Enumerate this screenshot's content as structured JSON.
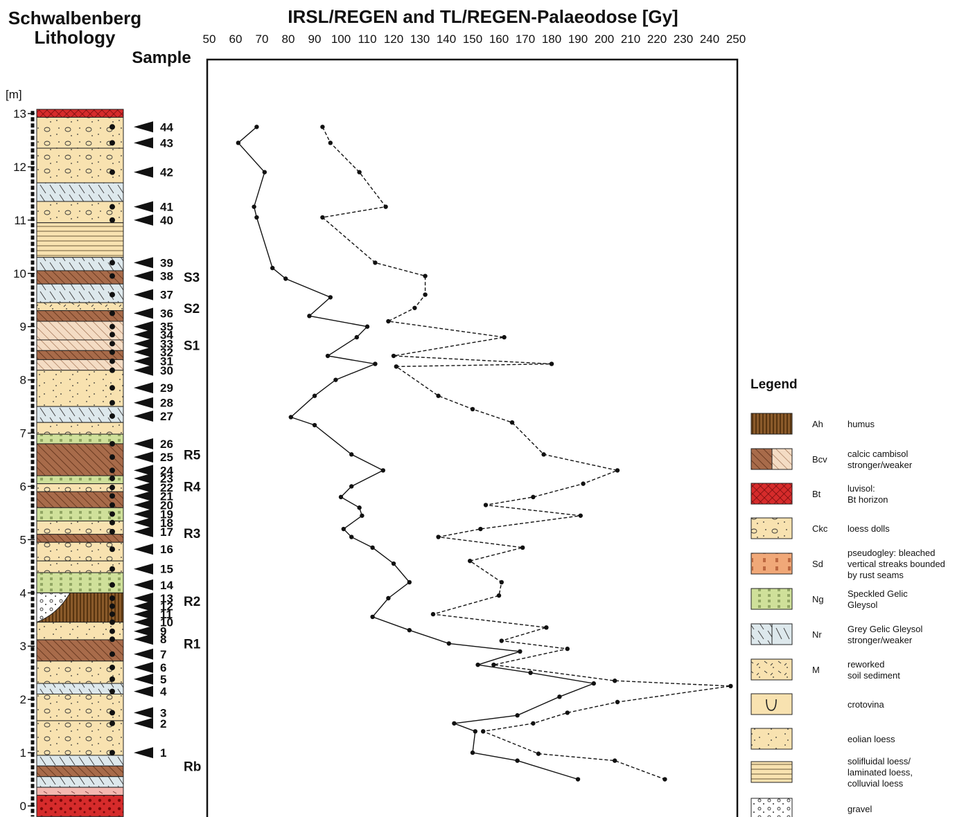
{
  "chart_data": {
    "type": "line",
    "title": "IRSL/REGEN and TL/REGEN-Palaeodose [Gy]",
    "left_title_line1": "Schwalbenberg",
    "left_title_line2": "Lithology",
    "sample_label": "Sample",
    "ylabel": "[m]",
    "x_axis_position": "top",
    "xlim": [
      50,
      250
    ],
    "x_ticks": [
      "50",
      "60",
      "70",
      "80",
      "90",
      "100",
      "110",
      "120",
      "130",
      "140",
      "150",
      "160",
      "170",
      "180",
      "190",
      "200",
      "210",
      "220",
      "230",
      "240",
      "250"
    ],
    "ylim": [
      0,
      13
    ],
    "y_ticks": [
      "0",
      "1",
      "2",
      "3",
      "4",
      "5",
      "6",
      "7",
      "8",
      "9",
      "10",
      "11",
      "12",
      "13"
    ],
    "series": [
      {
        "style": "solid",
        "points": [
          [
            68,
            12.75
          ],
          [
            61,
            12.45
          ],
          [
            71,
            11.9
          ],
          [
            67,
            11.25
          ],
          [
            68,
            11.05
          ],
          [
            74,
            10.1
          ],
          [
            79,
            9.9
          ],
          [
            96,
            9.55
          ],
          [
            88,
            9.2
          ],
          [
            110,
            9.0
          ],
          [
            106,
            8.8
          ],
          [
            95,
            8.45
          ],
          [
            113,
            8.3
          ],
          [
            98,
            8.0
          ],
          [
            90,
            7.7
          ],
          [
            81,
            7.3
          ],
          [
            90,
            7.15
          ],
          [
            104,
            6.6
          ],
          [
            116,
            6.3
          ],
          [
            104,
            6.0
          ],
          [
            100,
            5.8
          ],
          [
            107,
            5.6
          ],
          [
            108,
            5.45
          ],
          [
            101,
            5.2
          ],
          [
            104,
            5.05
          ],
          [
            112,
            4.85
          ],
          [
            120,
            4.55
          ],
          [
            126,
            4.2
          ],
          [
            118,
            3.9
          ],
          [
            112,
            3.55
          ],
          [
            126,
            3.3
          ],
          [
            141,
            3.05
          ],
          [
            168,
            2.9
          ],
          [
            152,
            2.65
          ],
          [
            172,
            2.5
          ],
          [
            196,
            2.3
          ],
          [
            183,
            2.05
          ],
          [
            167,
            1.7
          ],
          [
            143,
            1.55
          ],
          [
            151,
            1.4
          ],
          [
            150,
            1.0
          ],
          [
            167,
            0.85
          ],
          [
            190,
            0.5
          ]
        ]
      },
      {
        "style": "dashed",
        "points": [
          [
            93,
            12.75
          ],
          [
            96,
            12.45
          ],
          [
            107,
            11.9
          ],
          [
            117,
            11.25
          ],
          [
            93,
            11.05
          ],
          [
            113,
            10.2
          ],
          [
            132,
            9.95
          ],
          [
            132,
            9.6
          ],
          [
            128,
            9.35
          ],
          [
            118,
            9.1
          ],
          [
            162,
            8.8
          ],
          [
            120,
            8.45
          ],
          [
            180,
            8.3
          ],
          [
            121,
            8.25
          ],
          [
            137,
            7.7
          ],
          [
            150,
            7.45
          ],
          [
            165,
            7.2
          ],
          [
            177,
            6.6
          ],
          [
            205,
            6.3
          ],
          [
            192,
            6.05
          ],
          [
            173,
            5.8
          ],
          [
            155,
            5.65
          ],
          [
            191,
            5.45
          ],
          [
            153,
            5.2
          ],
          [
            137,
            5.05
          ],
          [
            169,
            4.85
          ],
          [
            149,
            4.6
          ],
          [
            161,
            4.2
          ],
          [
            160,
            3.95
          ],
          [
            135,
            3.6
          ],
          [
            178,
            3.35
          ],
          [
            161,
            3.1
          ],
          [
            186,
            2.95
          ],
          [
            158,
            2.65
          ],
          [
            204,
            2.35
          ],
          [
            248,
            2.25
          ],
          [
            205,
            1.95
          ],
          [
            186,
            1.75
          ],
          [
            173,
            1.55
          ],
          [
            154,
            1.4
          ],
          [
            175,
            0.98
          ],
          [
            204,
            0.85
          ],
          [
            223,
            0.5
          ]
        ]
      }
    ],
    "samples": [
      {
        "n": "44",
        "depth": 12.75
      },
      {
        "n": "43",
        "depth": 12.45
      },
      {
        "n": "42",
        "depth": 11.9
      },
      {
        "n": "41",
        "depth": 11.25
      },
      {
        "n": "40",
        "depth": 11.0
      },
      {
        "n": "39",
        "depth": 10.2
      },
      {
        "n": "38",
        "depth": 9.95
      },
      {
        "n": "37",
        "depth": 9.6
      },
      {
        "n": "36",
        "depth": 9.25
      },
      {
        "n": "35",
        "depth": 9.0
      },
      {
        "n": "34",
        "depth": 8.85
      },
      {
        "n": "33",
        "depth": 8.68
      },
      {
        "n": "32",
        "depth": 8.52
      },
      {
        "n": "31",
        "depth": 8.35
      },
      {
        "n": "30",
        "depth": 8.18
      },
      {
        "n": "29",
        "depth": 7.85
      },
      {
        "n": "28",
        "depth": 7.57
      },
      {
        "n": "27",
        "depth": 7.32
      },
      {
        "n": "26",
        "depth": 6.8
      },
      {
        "n": "25",
        "depth": 6.55
      },
      {
        "n": "24",
        "depth": 6.3
      },
      {
        "n": "23",
        "depth": 6.15
      },
      {
        "n": "22",
        "depth": 5.98
      },
      {
        "n": "21",
        "depth": 5.82
      },
      {
        "n": "20",
        "depth": 5.65
      },
      {
        "n": "19",
        "depth": 5.48
      },
      {
        "n": "18",
        "depth": 5.32
      },
      {
        "n": "17",
        "depth": 5.15
      },
      {
        "n": "16",
        "depth": 4.82
      },
      {
        "n": "15",
        "depth": 4.45
      },
      {
        "n": "14",
        "depth": 4.15
      },
      {
        "n": "13",
        "depth": 3.9
      },
      {
        "n": "12",
        "depth": 3.75
      },
      {
        "n": "11",
        "depth": 3.6
      },
      {
        "n": "10",
        "depth": 3.45
      },
      {
        "n": "9",
        "depth": 3.28
      },
      {
        "n": "8",
        "depth": 3.13
      },
      {
        "n": "7",
        "depth": 2.85
      },
      {
        "n": "6",
        "depth": 2.6
      },
      {
        "n": "5",
        "depth": 2.38
      },
      {
        "n": "4",
        "depth": 2.15
      },
      {
        "n": "3",
        "depth": 1.75
      },
      {
        "n": "2",
        "depth": 1.55
      },
      {
        "n": "1",
        "depth": 1.0
      }
    ],
    "horizon_labels": [
      {
        "label": "S3",
        "depth": 9.93
      },
      {
        "label": "S2",
        "depth": 9.35
      },
      {
        "label": "S1",
        "depth": 8.65
      },
      {
        "label": "R5",
        "depth": 6.6
      },
      {
        "label": "R4",
        "depth": 6.0
      },
      {
        "label": "R3",
        "depth": 5.12
      },
      {
        "label": "R2",
        "depth": 3.85
      },
      {
        "label": "R1",
        "depth": 3.05
      },
      {
        "label": "Rb",
        "depth": 0.75
      }
    ],
    "lithology": [
      {
        "bottom": 12.93,
        "top": 13.08,
        "unit": "Bt"
      },
      {
        "bottom": 12.35,
        "top": 12.93,
        "unit": "Ckc"
      },
      {
        "bottom": 11.7,
        "top": 12.35,
        "unit": "Ckc"
      },
      {
        "bottom": 11.35,
        "top": 11.7,
        "unit": "Nr"
      },
      {
        "bottom": 10.95,
        "top": 11.35,
        "unit": "Ckc"
      },
      {
        "bottom": 10.3,
        "top": 10.95,
        "unit": "laminated"
      },
      {
        "bottom": 10.05,
        "top": 10.3,
        "unit": "Nr"
      },
      {
        "bottom": 9.8,
        "top": 10.05,
        "unit": "Bcv"
      },
      {
        "bottom": 9.45,
        "top": 9.8,
        "unit": "Nr"
      },
      {
        "bottom": 9.3,
        "top": 9.45,
        "unit": "M"
      },
      {
        "bottom": 9.1,
        "top": 9.3,
        "unit": "Bcv"
      },
      {
        "bottom": 8.75,
        "top": 9.1,
        "unit": "Bcv-weak"
      },
      {
        "bottom": 8.55,
        "top": 8.75,
        "unit": "Bcv-weak"
      },
      {
        "bottom": 8.38,
        "top": 8.55,
        "unit": "Bcv"
      },
      {
        "bottom": 8.18,
        "top": 8.38,
        "unit": "Bcv-weak"
      },
      {
        "bottom": 7.5,
        "top": 8.18,
        "unit": "eolian"
      },
      {
        "bottom": 7.2,
        "top": 7.5,
        "unit": "Nr"
      },
      {
        "bottom": 6.98,
        "top": 7.2,
        "unit": "Ckc"
      },
      {
        "bottom": 6.8,
        "top": 6.98,
        "unit": "Ng"
      },
      {
        "bottom": 6.2,
        "top": 6.8,
        "unit": "Bcv"
      },
      {
        "bottom": 6.05,
        "top": 6.2,
        "unit": "Ng"
      },
      {
        "bottom": 5.9,
        "top": 6.05,
        "unit": "Ckc"
      },
      {
        "bottom": 5.6,
        "top": 5.9,
        "unit": "Bcv"
      },
      {
        "bottom": 5.35,
        "top": 5.6,
        "unit": "Ng"
      },
      {
        "bottom": 5.1,
        "top": 5.35,
        "unit": "Ckc"
      },
      {
        "bottom": 4.95,
        "top": 5.1,
        "unit": "Bcv"
      },
      {
        "bottom": 4.6,
        "top": 4.95,
        "unit": "Ckc"
      },
      {
        "bottom": 4.38,
        "top": 4.6,
        "unit": "Ckc"
      },
      {
        "bottom": 4.0,
        "top": 4.38,
        "unit": "Ng"
      },
      {
        "bottom": 3.45,
        "top": 4.0,
        "unit": "Ah"
      },
      {
        "bottom": 3.12,
        "top": 3.45,
        "unit": "eolian"
      },
      {
        "bottom": 2.72,
        "top": 3.12,
        "unit": "Bcv"
      },
      {
        "bottom": 2.3,
        "top": 2.72,
        "unit": "Ckc"
      },
      {
        "bottom": 2.1,
        "top": 2.3,
        "unit": "Nr"
      },
      {
        "bottom": 1.6,
        "top": 2.1,
        "unit": "Ckc"
      },
      {
        "bottom": 0.95,
        "top": 1.6,
        "unit": "Ckc"
      },
      {
        "bottom": 0.75,
        "top": 0.95,
        "unit": "Nr"
      },
      {
        "bottom": 0.55,
        "top": 0.75,
        "unit": "Bcv"
      },
      {
        "bottom": 0.35,
        "top": 0.55,
        "unit": "Nr"
      },
      {
        "bottom": 0.2,
        "top": 0.35,
        "unit": "pink"
      },
      {
        "bottom": -0.2,
        "top": 0.2,
        "unit": "Bt-gravel"
      }
    ]
  },
  "legend": {
    "title": "Legend",
    "items": [
      {
        "code": "Ah",
        "text": [
          "humus"
        ],
        "fill": "#8a5a2a",
        "pattern": "Ah"
      },
      {
        "code": "Bcv",
        "text": [
          "calcic cambisol",
          "stronger/weaker"
        ],
        "fill": "#a86b4a",
        "pattern": "Bcv"
      },
      {
        "code": "Bt",
        "text": [
          "luvisol:",
          "Bt horizon"
        ],
        "fill": "#d62b2b",
        "pattern": "Bt"
      },
      {
        "code": "Ckc",
        "text": [
          "loess dolls"
        ],
        "fill": "#f8e2b0",
        "pattern": "Ckc"
      },
      {
        "code": "Sd",
        "text": [
          "pseudogley: bleached",
          "vertical streaks bounded",
          "by rust seams"
        ],
        "fill": "#f0a878",
        "pattern": "Sd"
      },
      {
        "code": "Ng",
        "text": [
          "Speckled Gelic",
          "Gleysol"
        ],
        "fill": "#cfe09a",
        "pattern": "Ng"
      },
      {
        "code": "Nr",
        "text": [
          "Grey Gelic Gleysol",
          "stronger/weaker"
        ],
        "fill": "#dde8ec",
        "pattern": "Nr"
      },
      {
        "code": "M",
        "text": [
          "reworked",
          "soil sediment"
        ],
        "fill": "#f8e2b0",
        "pattern": "M"
      },
      {
        "code": "",
        "text": [
          "crotovina"
        ],
        "fill": "#f8e2b0",
        "pattern": "croto"
      },
      {
        "code": "",
        "text": [
          "eolian loess"
        ],
        "fill": "#f8e2b0",
        "pattern": "eolian"
      },
      {
        "code": "",
        "text": [
          "solifluidal loess/",
          "laminated loess,",
          "colluvial loess"
        ],
        "fill": "#f8e2b0",
        "pattern": "laminated"
      },
      {
        "code": "",
        "text": [
          "gravel"
        ],
        "fill": "#ffffff",
        "pattern": "gravel"
      }
    ]
  },
  "colors": {
    "loess": "#f8e2b0",
    "cambisol": "#a86b4a",
    "luvisol": "#d62b2b",
    "gleysol_grey": "#dde8ec",
    "gleysol_speckled": "#cfe09a",
    "humus": "#8a5a2a",
    "pink": "#f4b8b0"
  }
}
